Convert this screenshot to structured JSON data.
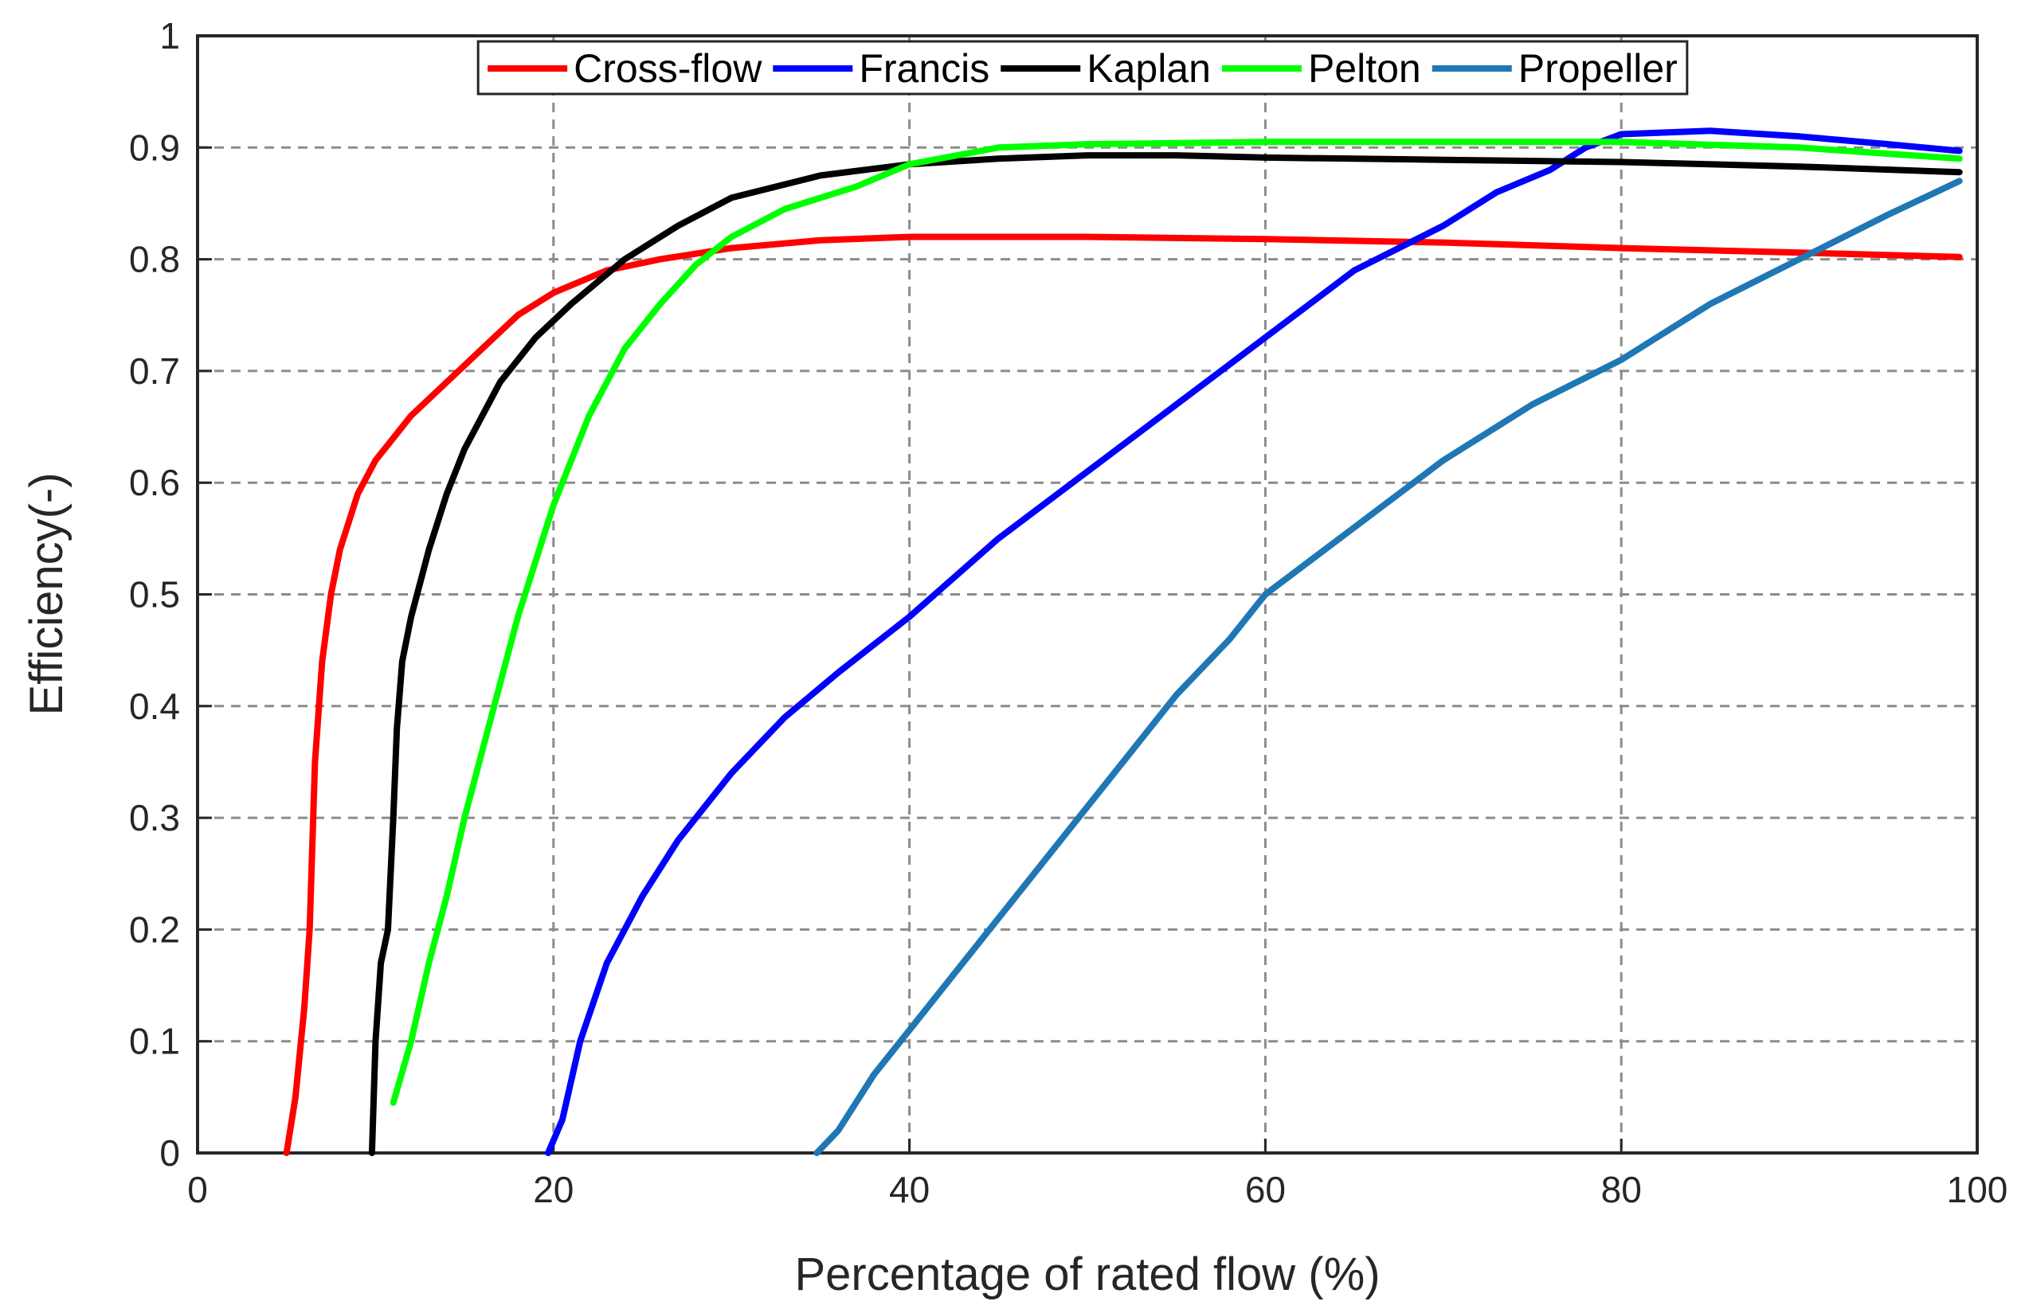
{
  "chart_data": {
    "type": "line",
    "title": "",
    "xlabel": "Percentage of rated flow (%)",
    "ylabel": "Efficiency(-)",
    "xlim": [
      0,
      100
    ],
    "ylim": [
      0,
      1
    ],
    "grid": true,
    "legend_position": "top",
    "x_ticks": [
      "0",
      "20",
      "40",
      "60",
      "80",
      "100"
    ],
    "y_ticks": [
      "0",
      "0.1",
      "0.2",
      "0.3",
      "0.4",
      "0.5",
      "0.6",
      "0.7",
      "0.8",
      "0.9",
      "1"
    ],
    "series": [
      {
        "name": "Cross-flow",
        "color": "#ff0000",
        "x": [
          5,
          5.5,
          6,
          6.3,
          6.6,
          7,
          7.5,
          8,
          9,
          10,
          12,
          14,
          16,
          18,
          20,
          23,
          26,
          30,
          35,
          40,
          50,
          60,
          70,
          80,
          90,
          99
        ],
        "y": [
          0,
          0.05,
          0.13,
          0.2,
          0.35,
          0.44,
          0.5,
          0.54,
          0.59,
          0.62,
          0.66,
          0.69,
          0.72,
          0.75,
          0.77,
          0.79,
          0.8,
          0.81,
          0.817,
          0.82,
          0.82,
          0.818,
          0.815,
          0.81,
          0.806,
          0.802
        ]
      },
      {
        "name": "Francis",
        "color": "#0000ff",
        "x": [
          19.7,
          20.5,
          21.5,
          23,
          25,
          27,
          30,
          33,
          36,
          40,
          45,
          50,
          55,
          60,
          65,
          70,
          73,
          76,
          78,
          80,
          85,
          90,
          95,
          99
        ],
        "y": [
          0,
          0.03,
          0.1,
          0.17,
          0.23,
          0.28,
          0.34,
          0.39,
          0.43,
          0.48,
          0.55,
          0.61,
          0.67,
          0.73,
          0.79,
          0.83,
          0.86,
          0.88,
          0.9,
          0.912,
          0.915,
          0.91,
          0.903,
          0.897
        ]
      },
      {
        "name": "Kaplan",
        "color": "#000000",
        "x": [
          9.8,
          10,
          10.3,
          10.7,
          11,
          11.2,
          11.5,
          12,
          13,
          14,
          15,
          17,
          19,
          21,
          24,
          27,
          30,
          35,
          40,
          45,
          50,
          55,
          60,
          70,
          80,
          90,
          99
        ],
        "y": [
          0,
          0.1,
          0.17,
          0.2,
          0.3,
          0.38,
          0.44,
          0.48,
          0.54,
          0.59,
          0.63,
          0.69,
          0.73,
          0.76,
          0.8,
          0.83,
          0.855,
          0.875,
          0.885,
          0.89,
          0.893,
          0.893,
          0.891,
          0.889,
          0.887,
          0.883,
          0.878
        ]
      },
      {
        "name": "Pelton",
        "color": "#00ff00",
        "x": [
          11,
          12,
          13,
          14,
          15,
          16,
          18,
          20,
          22,
          24,
          26,
          28,
          30,
          33,
          37,
          40,
          45,
          50,
          60,
          70,
          80,
          90,
          99
        ],
        "y": [
          0.045,
          0.1,
          0.17,
          0.23,
          0.3,
          0.36,
          0.48,
          0.58,
          0.66,
          0.72,
          0.76,
          0.795,
          0.82,
          0.845,
          0.865,
          0.885,
          0.9,
          0.903,
          0.905,
          0.905,
          0.905,
          0.9,
          0.89
        ]
      },
      {
        "name": "Propeller",
        "color": "#1f77b4",
        "x": [
          34.8,
          36,
          38,
          40,
          42,
          45,
          48,
          50,
          52,
          55,
          58,
          60,
          65,
          70,
          75,
          80,
          85,
          90,
          95,
          99
        ],
        "y": [
          0,
          0.02,
          0.07,
          0.11,
          0.15,
          0.21,
          0.27,
          0.31,
          0.35,
          0.41,
          0.46,
          0.5,
          0.56,
          0.62,
          0.67,
          0.71,
          0.76,
          0.8,
          0.84,
          0.87
        ]
      }
    ]
  }
}
